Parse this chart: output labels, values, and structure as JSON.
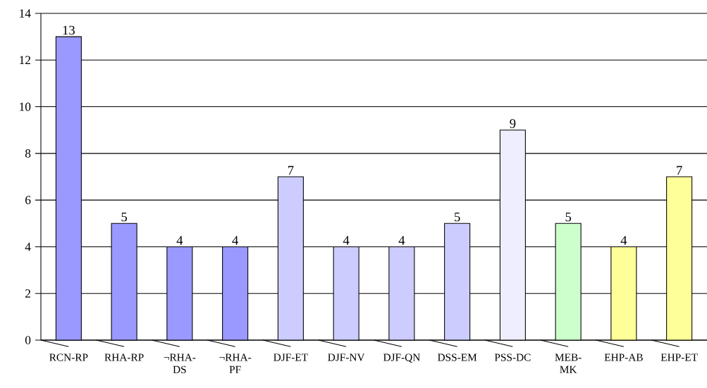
{
  "chart_data": {
    "type": "bar",
    "categories": [
      "RCN-RP",
      "RHA-RP",
      "¬RHA-DS",
      "¬RHA-PF",
      "DJF-ET",
      "DJF-NV",
      "DJF-QN",
      "DSS-EM",
      "PSS-DC",
      "MEB-MK",
      "EHP-AB",
      "EHP-ET"
    ],
    "values": [
      13,
      5,
      4,
      4,
      7,
      4,
      4,
      5,
      9,
      5,
      4,
      7
    ],
    "colors": [
      "#9999ff",
      "#9999ff",
      "#9999ff",
      "#9999ff",
      "#ccccff",
      "#ccccff",
      "#ccccff",
      "#ccccff",
      "#eeeeff",
      "#ccffcc",
      "#ffff99",
      "#ffff99"
    ],
    "ylim": [
      0,
      14
    ],
    "yticks": [
      0,
      2,
      4,
      6,
      8,
      10,
      12,
      14
    ],
    "grid": "y",
    "data_labels": true
  }
}
